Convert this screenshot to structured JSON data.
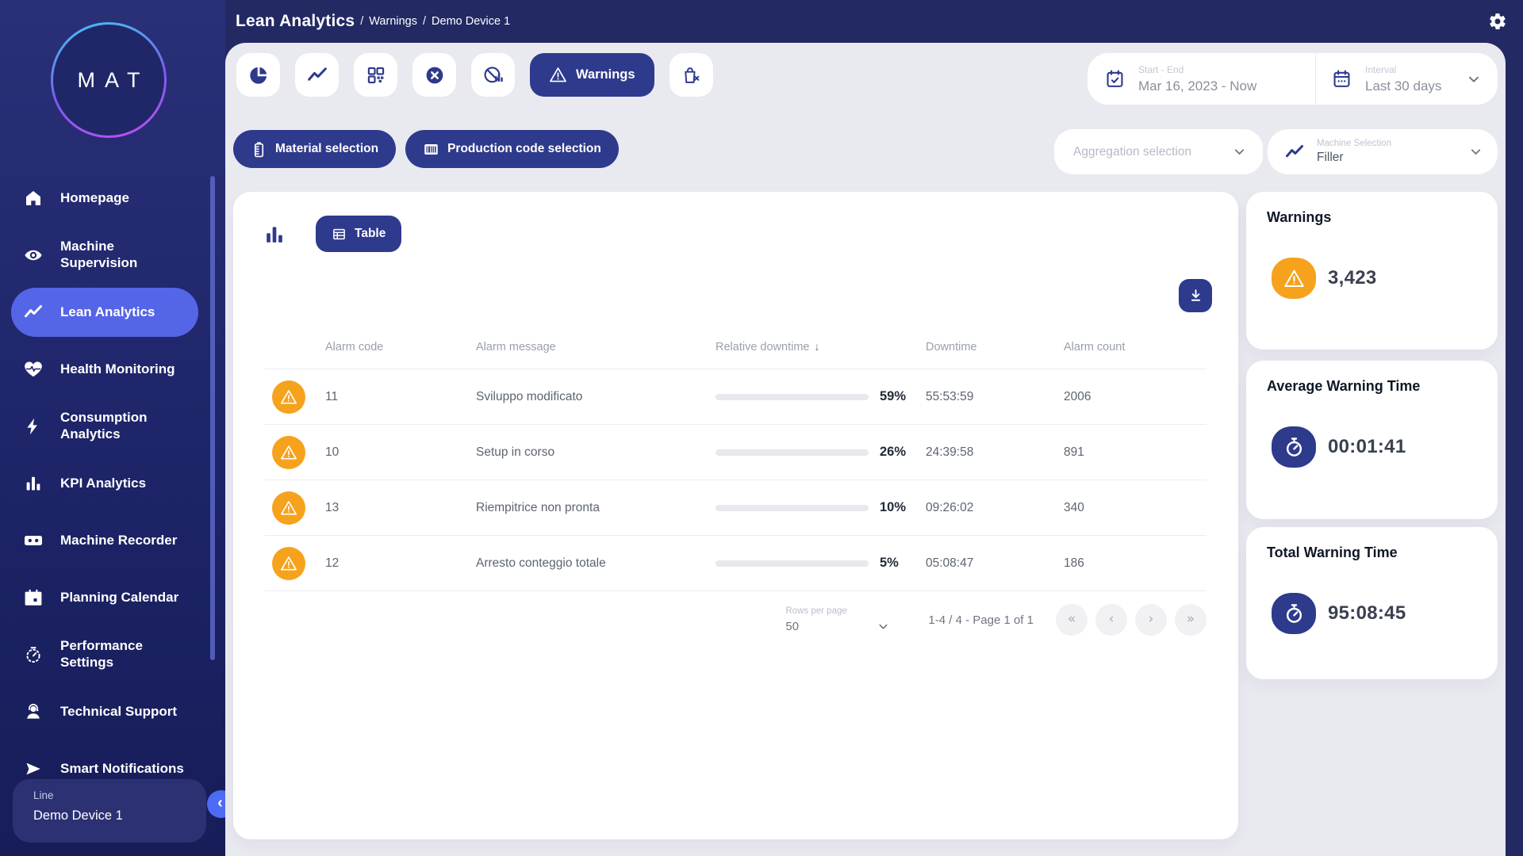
{
  "colors": {
    "accent_navy": "#2E3A8C",
    "active_nav_blue": "#5565E8",
    "warning_orange": "#F6A21C",
    "page_background": "#E9E9F0",
    "shell_navy": "#222963"
  },
  "header": {
    "breadcrumb": {
      "root": "Lean Analytics",
      "separator": "/",
      "section": "Warnings",
      "device": "Demo Device 1"
    }
  },
  "sidebar": {
    "logo_text": "MAT",
    "items": [
      {
        "label": "Homepage"
      },
      {
        "label": "Machine Supervision"
      },
      {
        "label": "Lean Analytics"
      },
      {
        "label": "Health Monitoring"
      },
      {
        "label": "Consumption Analytics"
      },
      {
        "label": "KPI Analytics"
      },
      {
        "label": "Machine Recorder"
      },
      {
        "label": "Planning Calendar"
      },
      {
        "label": "Performance Settings"
      },
      {
        "label": "Technical Support"
      },
      {
        "label": "Smart Notifications"
      }
    ],
    "active_item": "Lean Analytics",
    "device_card": {
      "label": "Line",
      "value": "Demo Device 1"
    },
    "collapse_icon": "‹"
  },
  "toolbar": {
    "warnings_label": "Warnings",
    "date_range": {
      "label": "Start - End",
      "value": "Mar 16, 2023 - Now"
    },
    "interval": {
      "label": "Interval",
      "value": "Last 30 days"
    }
  },
  "filters": {
    "material_label": "Material selection",
    "production_label": "Production code selection",
    "aggregation_placeholder": "Aggregation selection",
    "machine": {
      "label": "Machine Selection",
      "value": "Filler"
    }
  },
  "content": {
    "view_toggle": {
      "table_label": "Table"
    },
    "table": {
      "columns": {
        "alarm_code": "Alarm code",
        "alarm_message": "Alarm message",
        "relative_downtime": "Relative downtime",
        "downtime": "Downtime",
        "alarm_count": "Alarm count"
      },
      "sort_icon": "↓",
      "sorted_by": "Relative downtime",
      "rows": [
        {
          "alarm_code": "11",
          "alarm_message": "Sviluppo modificato",
          "relative_downtime_pct": 59,
          "relative_downtime_label": "59%",
          "downtime": "55:53:59",
          "alarm_count": "2006"
        },
        {
          "alarm_code": "10",
          "alarm_message": "Setup in corso",
          "relative_downtime_pct": 26,
          "relative_downtime_label": "26%",
          "downtime": "24:39:58",
          "alarm_count": "891"
        },
        {
          "alarm_code": "13",
          "alarm_message": "Riempitrice non pronta",
          "relative_downtime_pct": 10,
          "relative_downtime_label": "10%",
          "downtime": "09:26:02",
          "alarm_count": "340"
        },
        {
          "alarm_code": "12",
          "alarm_message": "Arresto conteggio totale",
          "relative_downtime_pct": 5,
          "relative_downtime_label": "5%",
          "downtime": "05:08:47",
          "alarm_count": "186"
        }
      ]
    },
    "pagination": {
      "rows_per_page_label": "Rows per page",
      "rows_per_page_value": "50",
      "range_label": "1-4 / 4 - Page 1 of 1",
      "first_icon": "«",
      "prev_icon": "‹",
      "next_icon": "›",
      "last_icon": "»"
    }
  },
  "summary_cards": [
    {
      "title": "Warnings",
      "value": "3,423",
      "icon": "warning-triangle",
      "color": "#F6A21C"
    },
    {
      "title": "Average Warning Time",
      "value": "00:01:41",
      "icon": "stopwatch",
      "color": "#2E3A8C"
    },
    {
      "title": "Total Warning Time",
      "value": "95:08:45",
      "icon": "stopwatch",
      "color": "#2E3A8C"
    }
  ]
}
